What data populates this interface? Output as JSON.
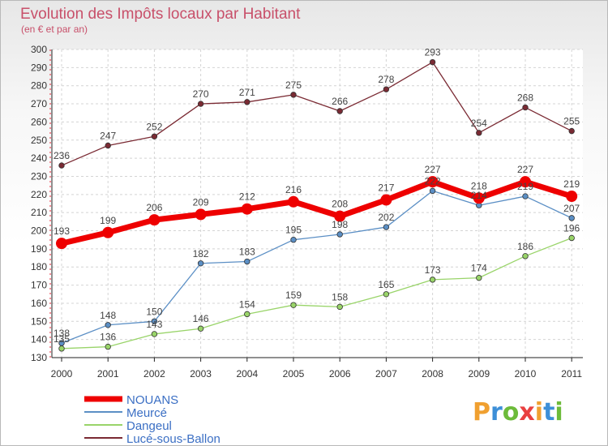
{
  "chart_data": {
    "type": "line",
    "title": "Evolution des Impôts locaux par Habitant",
    "subtitle": "(en € et par an)",
    "x": [
      "2000",
      "2001",
      "2002",
      "2003",
      "2004",
      "2005",
      "2006",
      "2007",
      "2008",
      "2009",
      "2010",
      "2011"
    ],
    "ylim": [
      130,
      300
    ],
    "yticks": [
      130,
      140,
      150,
      160,
      170,
      180,
      190,
      200,
      210,
      220,
      230,
      240,
      250,
      260,
      270,
      280,
      290,
      300
    ],
    "grid": true,
    "legend_position": "bottom-left",
    "series": [
      {
        "name": "Lucé-sous-Ballon",
        "color": "#7a2a33",
        "values": [
          236,
          247,
          252,
          270,
          271,
          275,
          266,
          278,
          293,
          254,
          268,
          255
        ],
        "labels": [
          "236",
          "247",
          "252",
          "270",
          "271",
          "275",
          "266",
          "278",
          "293",
          "254",
          "268",
          "255"
        ]
      },
      {
        "name": "Meurcé",
        "color": "#5b8fc5",
        "values": [
          138,
          148,
          150,
          182,
          183,
          195,
          198,
          202,
          222,
          214,
          219,
          207
        ],
        "labels": [
          "138",
          "148",
          "150",
          "182",
          "183",
          "195",
          "198",
          "202",
          "222",
          "214",
          "219",
          "207"
        ]
      },
      {
        "name": "Dangeul",
        "color": "#99d469",
        "values": [
          135,
          136,
          143,
          146,
          154,
          159,
          158,
          165,
          173,
          174,
          186,
          196
        ],
        "labels": [
          "135",
          "136",
          "143",
          "146",
          "154",
          "159",
          "158",
          "165",
          "173",
          "174",
          "186",
          "196"
        ]
      },
      {
        "name": "NOUANS",
        "color": "#ee0000",
        "values": [
          193,
          199,
          206,
          209,
          212,
          216,
          208,
          217,
          227,
          218,
          227,
          219
        ],
        "labels": [
          "193",
          "199",
          "206",
          "209",
          "212",
          "216",
          "208",
          "217",
          "227",
          "218",
          "227",
          "219"
        ]
      }
    ]
  },
  "legend": {
    "items": [
      {
        "name": "NOUANS",
        "color": "#ee0000"
      },
      {
        "name": "Meurcé",
        "color": "#5b8fc5"
      },
      {
        "name": "Dangeul",
        "color": "#99d469"
      },
      {
        "name": "Lucé-sous-Ballon",
        "color": "#7a2a33"
      }
    ]
  },
  "brand": {
    "text": "Proxiti",
    "colors": [
      "#f0a030",
      "#3d8fd8",
      "#6dbb3a",
      "#e94040",
      "#f0a030",
      "#3d8fd8",
      "#6dbb3a"
    ]
  }
}
